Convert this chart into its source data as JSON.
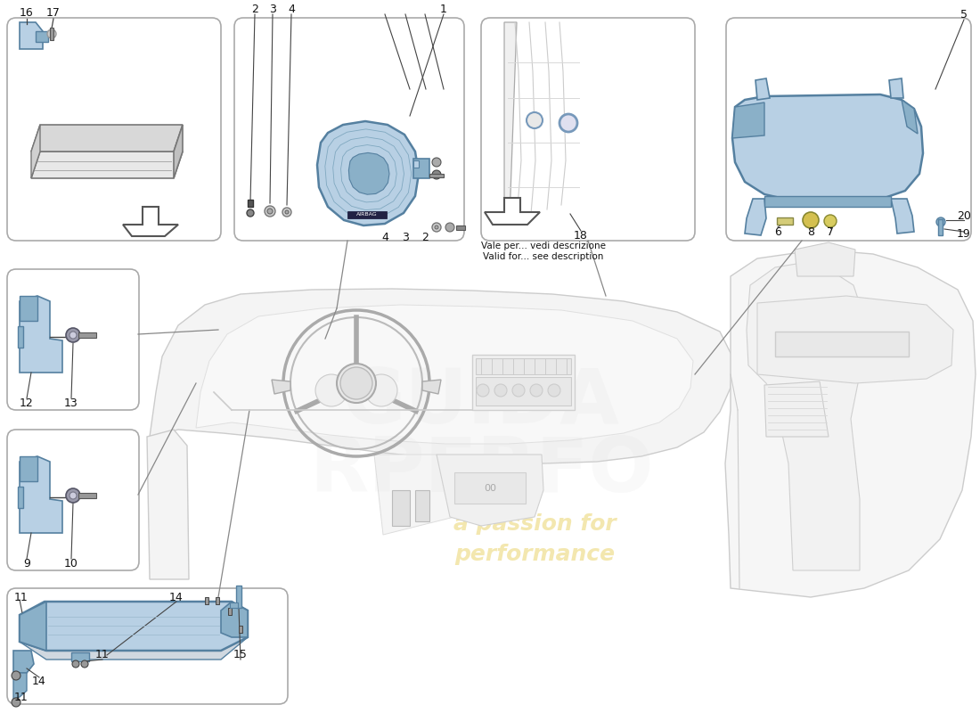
{
  "bg": "#ffffff",
  "bl": "#b8d0e4",
  "bm": "#8ab0c8",
  "bd": "#5580a0",
  "gl": "#eeeeee",
  "gm": "#cccccc",
  "gd": "#999999",
  "lc": "#444444",
  "box_ec": "#aaaaaa",
  "valid1": "Vale per... vedi descrizione",
  "valid2": "Valid for... see description",
  "wm1": "a passion for",
  "wm2": "performance"
}
